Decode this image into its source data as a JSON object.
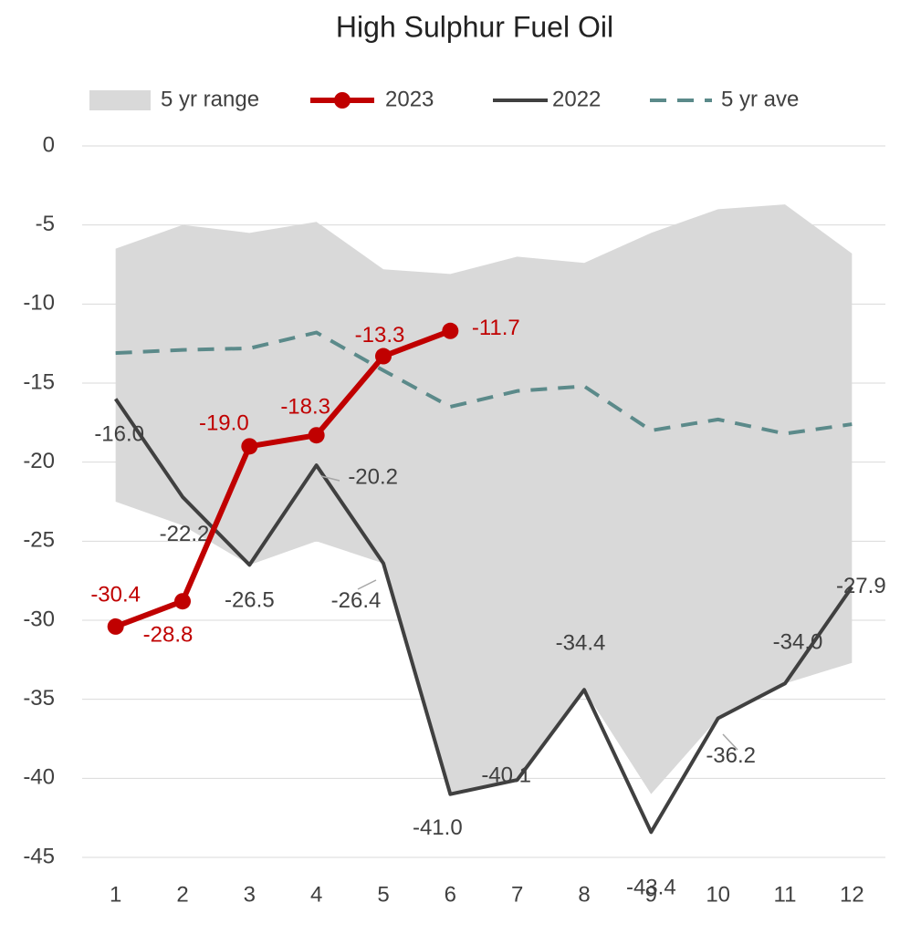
{
  "chart_data": {
    "type": "line",
    "title": "High Sulphur Fuel Oil",
    "categories": [
      "1",
      "2",
      "3",
      "4",
      "5",
      "6",
      "7",
      "8",
      "9",
      "10",
      "11",
      "12"
    ],
    "ylim": [
      -45,
      0
    ],
    "yticks": [
      0,
      -5,
      -10,
      -15,
      -20,
      -25,
      -30,
      -35,
      -40,
      -45
    ],
    "grid": true,
    "legend": "top",
    "series": [
      {
        "name": "5 yr range",
        "type": "range",
        "color": "#d9d9d9",
        "high": [
          -6.5,
          -5.0,
          -5.5,
          -4.8,
          -7.8,
          -8.1,
          -7.0,
          -7.4,
          -5.5,
          -4.0,
          -3.7,
          -6.8
        ],
        "low": [
          -22.5,
          -24.0,
          -26.5,
          -25.0,
          -26.4,
          -41.0,
          -40.1,
          -34.4,
          -41.0,
          -36.2,
          -34.0,
          -32.7
        ]
      },
      {
        "name": "2023",
        "type": "line",
        "color": "#c00000",
        "markers": true,
        "values": [
          -30.4,
          -28.8,
          -19.0,
          -18.3,
          -13.3,
          -11.7,
          null,
          null,
          null,
          null,
          null,
          null
        ],
        "value_labels": [
          "-30.4",
          "-28.8",
          "-19.0",
          "-18.3",
          "-13.3",
          "-11.7",
          null,
          null,
          null,
          null,
          null,
          null
        ]
      },
      {
        "name": "2022",
        "type": "line",
        "color": "#404040",
        "values": [
          -16.0,
          -22.2,
          -26.5,
          -20.2,
          -26.4,
          -41.0,
          -40.1,
          -34.4,
          -43.4,
          -36.2,
          -34.0,
          -27.9
        ],
        "value_labels": [
          "-16.0",
          "-22.2",
          "-26.5",
          "-20.2",
          "-26.4",
          "-41.0",
          "-40.1",
          "-34.4",
          "-43.4",
          "-36.2",
          "-34.0",
          "-27.9"
        ]
      },
      {
        "name": "5 yr ave",
        "type": "dashed",
        "color": "#5b8a8a",
        "values": [
          -13.1,
          -12.9,
          -12.8,
          -11.8,
          -14.2,
          -16.5,
          -15.5,
          -15.2,
          -18.0,
          -17.3,
          -18.2,
          -17.6
        ]
      }
    ]
  }
}
